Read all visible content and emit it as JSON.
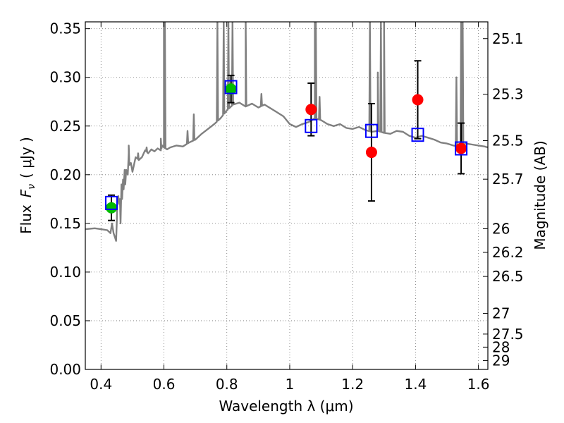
{
  "chart_data": {
    "type": "scatter",
    "xlabel": "Wavelength  λ (μm)",
    "ylabel_left_text": "Flux",
    "ylabel_left_math": "F",
    "ylabel_left_sub": "ν",
    "ylabel_left_unit": "( μJy )",
    "ylabel_right": "Magnitude (AB)",
    "xlim": [
      0.35,
      1.63
    ],
    "ylim": [
      0.0,
      0.357
    ],
    "grid": true,
    "x_ticks": [
      0.4,
      0.6,
      0.8,
      1.0,
      1.2,
      1.4,
      1.6
    ],
    "x_tick_labels": [
      "0.4",
      "0.6",
      "0.8",
      "1",
      "1.2",
      "1.4",
      "1.6"
    ],
    "y_ticks": [
      0.0,
      0.05,
      0.1,
      0.15,
      0.2,
      0.25,
      0.3,
      0.35
    ],
    "y_tick_labels": [
      "0.00",
      "0.05",
      "0.10",
      "0.15",
      "0.20",
      "0.25",
      "0.30",
      "0.35"
    ],
    "right_ticks": [
      {
        "flux": 0.3398,
        "label": "25.1"
      },
      {
        "flux": 0.2826,
        "label": "25.3"
      },
      {
        "flux": 0.235,
        "label": "25.5"
      },
      {
        "flux": 0.1954,
        "label": "25.7"
      },
      {
        "flux": 0.1445,
        "label": "26"
      },
      {
        "flux": 0.1202,
        "label": "26.2"
      },
      {
        "flux": 0.0955,
        "label": "26.5"
      },
      {
        "flux": 0.0575,
        "label": "27"
      },
      {
        "flux": 0.0363,
        "label": "27.5"
      },
      {
        "flux": 0.0229,
        "label": "28"
      },
      {
        "flux": 0.0091,
        "label": "29"
      }
    ],
    "series": [
      {
        "kind": "line",
        "color": "#808080",
        "points": [
          [
            0.35,
            0.144
          ],
          [
            0.38,
            0.145
          ],
          [
            0.4,
            0.144
          ],
          [
            0.42,
            0.143
          ],
          [
            0.43,
            0.14
          ],
          [
            0.435,
            0.15
          ],
          [
            0.44,
            0.14
          ],
          [
            0.445,
            0.135
          ],
          [
            0.448,
            0.132
          ],
          [
            0.45,
            0.15
          ],
          [
            0.452,
            0.175
          ],
          [
            0.455,
            0.178
          ],
          [
            0.458,
            0.17
          ],
          [
            0.46,
            0.175
          ],
          [
            0.462,
            0.15
          ],
          [
            0.465,
            0.19
          ],
          [
            0.467,
            0.175
          ],
          [
            0.47,
            0.195
          ],
          [
            0.472,
            0.185
          ],
          [
            0.475,
            0.205
          ],
          [
            0.477,
            0.19
          ],
          [
            0.48,
            0.205
          ],
          [
            0.485,
            0.2
          ],
          [
            0.488,
            0.222
          ],
          [
            0.49,
            0.21
          ],
          [
            0.495,
            0.212
          ],
          [
            0.5,
            0.203
          ],
          [
            0.51,
            0.218
          ],
          [
            0.52,
            0.215
          ],
          [
            0.53,
            0.218
          ],
          [
            0.54,
            0.225
          ],
          [
            0.55,
            0.222
          ],
          [
            0.56,
            0.226
          ],
          [
            0.57,
            0.224
          ],
          [
            0.58,
            0.227
          ],
          [
            0.59,
            0.225
          ],
          [
            0.595,
            0.23
          ],
          [
            0.6,
            0.228
          ],
          [
            0.61,
            0.226
          ],
          [
            0.62,
            0.228
          ],
          [
            0.64,
            0.23
          ],
          [
            0.66,
            0.229
          ],
          [
            0.68,
            0.233
          ],
          [
            0.7,
            0.236
          ],
          [
            0.72,
            0.242
          ],
          [
            0.74,
            0.247
          ],
          [
            0.76,
            0.252
          ],
          [
            0.78,
            0.258
          ],
          [
            0.8,
            0.266
          ],
          [
            0.82,
            0.272
          ],
          [
            0.84,
            0.274
          ],
          [
            0.86,
            0.27
          ],
          [
            0.88,
            0.273
          ],
          [
            0.9,
            0.269
          ],
          [
            0.92,
            0.272
          ],
          [
            0.94,
            0.268
          ],
          [
            0.96,
            0.264
          ],
          [
            0.98,
            0.26
          ],
          [
            1.0,
            0.252
          ],
          [
            1.02,
            0.249
          ],
          [
            1.04,
            0.252
          ],
          [
            1.06,
            0.254
          ],
          [
            1.08,
            0.258
          ],
          [
            1.1,
            0.256
          ],
          [
            1.12,
            0.252
          ],
          [
            1.14,
            0.25
          ],
          [
            1.16,
            0.252
          ],
          [
            1.18,
            0.248
          ],
          [
            1.2,
            0.247
          ],
          [
            1.22,
            0.249
          ],
          [
            1.24,
            0.246
          ],
          [
            1.26,
            0.244
          ],
          [
            1.28,
            0.245
          ],
          [
            1.3,
            0.243
          ],
          [
            1.32,
            0.242
          ],
          [
            1.34,
            0.245
          ],
          [
            1.36,
            0.244
          ],
          [
            1.38,
            0.24
          ],
          [
            1.4,
            0.238
          ],
          [
            1.42,
            0.24
          ],
          [
            1.44,
            0.238
          ],
          [
            1.46,
            0.236
          ],
          [
            1.48,
            0.233
          ],
          [
            1.5,
            0.232
          ],
          [
            1.52,
            0.23
          ],
          [
            1.54,
            0.229
          ],
          [
            1.56,
            0.232
          ],
          [
            1.58,
            0.231
          ],
          [
            1.6,
            0.23
          ],
          [
            1.62,
            0.229
          ],
          [
            1.63,
            0.228
          ]
        ],
        "peaks": [
          [
            0.488,
            0.23
          ],
          [
            0.518,
            0.222
          ],
          [
            0.545,
            0.228
          ],
          [
            0.59,
            0.237
          ],
          [
            0.6,
            0.357
          ],
          [
            0.603,
            0.357
          ],
          [
            0.675,
            0.245
          ],
          [
            0.695,
            0.262
          ],
          [
            0.77,
            0.357
          ],
          [
            0.79,
            0.357
          ],
          [
            0.805,
            0.357
          ],
          [
            0.818,
            0.357
          ],
          [
            0.86,
            0.357
          ],
          [
            0.91,
            0.283
          ],
          [
            1.08,
            0.357
          ],
          [
            1.083,
            0.357
          ],
          [
            1.095,
            0.28
          ],
          [
            1.255,
            0.357
          ],
          [
            1.28,
            0.305
          ],
          [
            1.29,
            0.357
          ],
          [
            1.3,
            0.357
          ],
          [
            1.53,
            0.3
          ],
          [
            1.545,
            0.357
          ],
          [
            1.55,
            0.357
          ]
        ]
      },
      {
        "kind": "model_points",
        "marker": "square",
        "color": "#0000ff",
        "points": [
          [
            0.433,
            0.171
          ],
          [
            0.813,
            0.29
          ],
          [
            1.068,
            0.25
          ],
          [
            1.26,
            0.245
          ],
          [
            1.407,
            0.241
          ],
          [
            1.545,
            0.227
          ]
        ]
      },
      {
        "kind": "observed_points",
        "marker": "circle",
        "color": "#00bb00",
        "points": [
          [
            0.433,
            0.166
          ],
          [
            0.813,
            0.288
          ]
        ],
        "err": [
          0.013,
          0.014
        ]
      },
      {
        "kind": "observed_points",
        "marker": "circle",
        "color": "#ff0000",
        "points": [
          [
            1.068,
            0.267
          ],
          [
            1.26,
            0.223
          ],
          [
            1.407,
            0.277
          ],
          [
            1.545,
            0.227
          ]
        ],
        "err": [
          0.027,
          0.05,
          0.04,
          0.026
        ]
      }
    ]
  }
}
